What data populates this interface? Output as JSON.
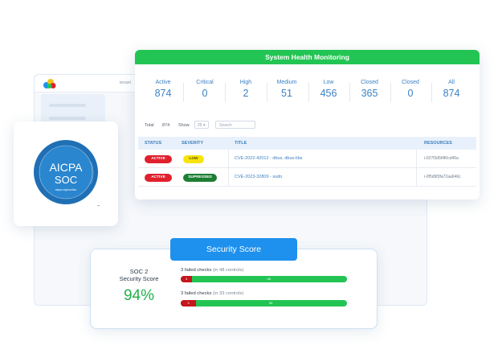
{
  "background_app": {
    "tenant_label": "tenant"
  },
  "health": {
    "title": "System Health Monitoring",
    "stats": [
      {
        "label": "Active",
        "value": "874"
      },
      {
        "label": "Critical",
        "value": "0"
      },
      {
        "label": "High",
        "value": "2"
      },
      {
        "label": "Medium",
        "value": "51"
      },
      {
        "label": "Low",
        "value": "456"
      },
      {
        "label": "Closed",
        "value": "365"
      },
      {
        "label": "Closed",
        "value": "0"
      },
      {
        "label": "All",
        "value": "874"
      }
    ],
    "toolbar": {
      "total_label": "Total",
      "total_value": "874",
      "show_label": "Show",
      "show_value": "25",
      "search_placeholder": "Search"
    },
    "columns": {
      "status": "STATUS",
      "severity": "SEVERITY",
      "title": "TITLE",
      "resources": "RESOURCES"
    },
    "rows": [
      {
        "status": "ACTIVE",
        "severity": "LOW",
        "title": "CVE-2022-42012 - dbus, dbus-libs",
        "resource": "i-027f3d5f4f0cd46a"
      },
      {
        "status": "ACTIVE",
        "severity": "SUPRESSED",
        "title": "CVE-2023-32809 - sudo",
        "resource": "i-0f5d9f3fa72aa646c"
      }
    ]
  },
  "badge": {
    "line1": "AICPA",
    "line2": "SOC",
    "line3": "aicpa.org/soc4so",
    "ring_text": "SOC for Service Organizations | Service Organizations"
  },
  "score": {
    "tab_label": "Security Score",
    "heading_line1": "SOC 2",
    "heading_line2": "Security Score",
    "percent": "94%",
    "checks": [
      {
        "failed_text": "3 failed checks",
        "controls_text": "(in 48 controls)",
        "failed": 3,
        "passed": 45
      },
      {
        "failed_text": "3 failed checks",
        "controls_text": "(in 33 controls)",
        "failed": 3,
        "passed": 30
      }
    ]
  },
  "colors": {
    "green": "#22c553",
    "blue": "#1e90ee",
    "red": "#c4161c",
    "link": "#3b82c4"
  }
}
